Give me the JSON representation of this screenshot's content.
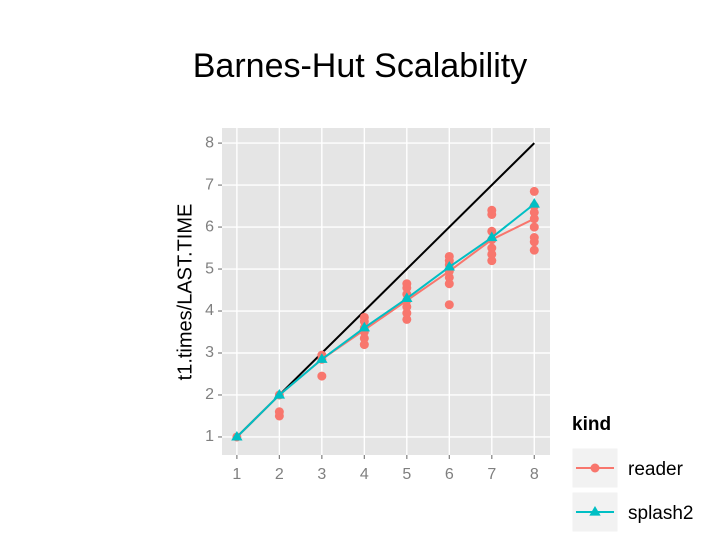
{
  "chart_data": {
    "type": "line",
    "title": "Barnes-Hut Scalability",
    "y_label": "t1.times/LAST.TIME",
    "x": [
      1,
      2,
      3,
      4,
      5,
      6,
      7,
      8
    ],
    "series": [
      {
        "name": "reader",
        "color": "#f8766d",
        "values": [
          1.0,
          2.0,
          2.85,
          3.55,
          4.25,
          4.95,
          5.7,
          6.2
        ],
        "points": {
          "x": [
            1,
            2,
            2,
            2,
            3,
            3,
            3,
            4,
            4,
            4,
            4,
            4,
            4,
            5,
            5,
            5,
            5,
            5,
            5,
            5,
            6,
            6,
            6,
            6,
            6,
            6,
            6,
            7,
            7,
            7,
            7,
            7,
            7,
            7,
            8,
            8,
            8,
            8,
            8,
            8,
            8,
            8
          ],
          "y": [
            1.0,
            1.5,
            1.6,
            2.0,
            2.45,
            2.85,
            2.95,
            3.2,
            3.35,
            3.5,
            3.6,
            3.75,
            3.85,
            3.8,
            3.95,
            4.1,
            4.25,
            4.4,
            4.55,
            4.65,
            4.15,
            4.65,
            4.8,
            4.95,
            5.1,
            5.2,
            5.3,
            5.2,
            5.35,
            5.5,
            5.7,
            5.9,
            6.3,
            6.4,
            5.45,
            5.65,
            5.75,
            6.0,
            6.2,
            6.35,
            6.5,
            6.85
          ]
        }
      },
      {
        "name": "splash2",
        "color": "#00bfc4",
        "values": [
          1.0,
          2.0,
          2.85,
          3.6,
          4.3,
          5.05,
          5.75,
          6.55
        ]
      }
    ],
    "reference_line": {
      "x": [
        1,
        8
      ],
      "y": [
        1,
        8
      ],
      "color": "#000000"
    },
    "legend_title": "kind",
    "legend": "right-bottom",
    "xlim": [
      0.65,
      8.37
    ],
    "ylim": [
      0.57,
      8.36
    ],
    "xticks": [
      1,
      2,
      3,
      4,
      5,
      6,
      7,
      8
    ],
    "yticks": [
      1,
      2,
      3,
      4,
      5,
      6,
      7,
      8
    ],
    "grid": true
  }
}
